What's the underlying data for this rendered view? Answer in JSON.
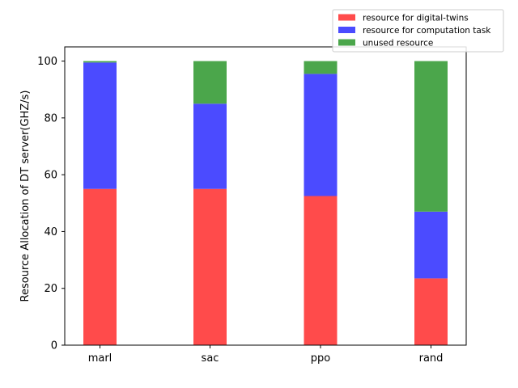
{
  "chart_data": {
    "type": "bar",
    "stacked": true,
    "categories": [
      "marl",
      "sac",
      "ppo",
      "rand"
    ],
    "series": [
      {
        "name": "resource for digital-twins",
        "color": "#ff4b4b",
        "values": [
          55,
          55,
          52.5,
          23.5
        ]
      },
      {
        "name": "resource for computation task",
        "color": "#4b4bff",
        "values": [
          44.5,
          30,
          43,
          23.5
        ]
      },
      {
        "name": "unused resource",
        "color": "#4ba64b",
        "values": [
          0.5,
          15,
          4.5,
          53
        ]
      }
    ],
    "ylabel": "Resource Allocation of DT server(GHZ/s)",
    "xlabel": "",
    "ylim": [
      0,
      105
    ],
    "yticks": [
      0,
      20,
      40,
      60,
      80,
      100
    ],
    "grid": false,
    "legend": "top-right"
  }
}
